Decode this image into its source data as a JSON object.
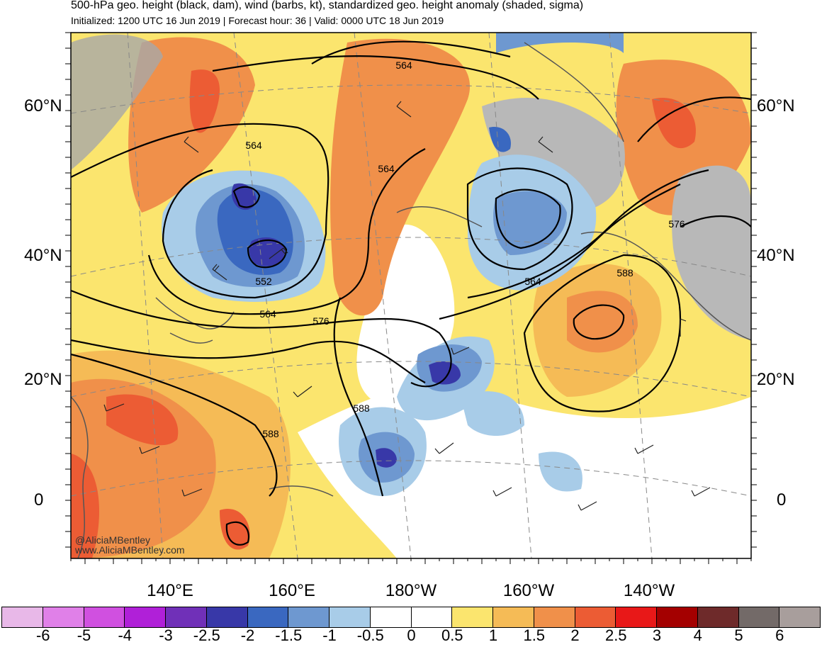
{
  "header": {
    "title": "500-hPa geo. height (black, dam), wind (barbs, kt), standardized geo. height anomaly (shaded, sigma)",
    "subtitle": "Initialized: 1200 UTC 16 Jun 2019 | Forecast hour: 36 | Valid: 0000 UTC 18 Jun 2019"
  },
  "lat_labels": [
    "60°N",
    "40°N",
    "20°N",
    "0"
  ],
  "lon_labels": [
    "140°E",
    "160°E",
    "180°W",
    "160°W",
    "140°W"
  ],
  "contour_labels": [
    "564",
    "564",
    "552",
    "564",
    "576",
    "588",
    "588",
    "564",
    "576",
    "588",
    "564"
  ],
  "colorbar": {
    "ticks": [
      "-6",
      "-5",
      "-4",
      "-3",
      "-2.5",
      "-2",
      "-1.5",
      "-1",
      "-0.5",
      "0",
      "0.5",
      "1",
      "1.5",
      "2",
      "2.5",
      "3",
      "4",
      "5",
      "6"
    ],
    "colors": [
      "#e8b8e8",
      "#e080e8",
      "#d050e0",
      "#b020d8",
      "#7030b8",
      "#3838a8",
      "#3a68c0",
      "#6e98d0",
      "#a8cce8",
      "#ffffff",
      "#ffffff",
      "#fbe56e",
      "#f5bb56",
      "#f0904a",
      "#ec5c34",
      "#e81818",
      "#a40000",
      "#6e2a2a",
      "#736a68",
      "#a89e9c"
    ]
  },
  "credits": [
    "@AliciaMBentley",
    "www.AliciaMBentley.com"
  ]
}
